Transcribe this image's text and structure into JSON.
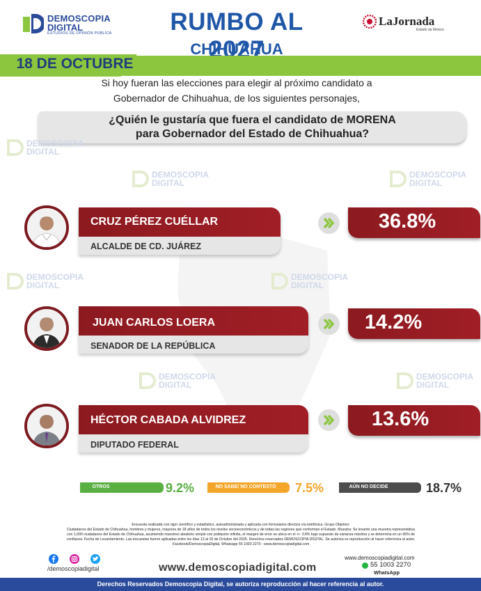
{
  "header": {
    "logo_line1": "DEMOSCOPIA",
    "logo_line2": "DIGITAL",
    "logo_tagline": "ESTUDIOS DE OPINIÓN PÚBLICA",
    "title": "RUMBO AL 2027",
    "subtitle": "CHIHUAHUA",
    "partner_name": "LaJornada",
    "partner_sub": "Estado de México",
    "date": "18 DE OCTUBRE"
  },
  "intro": {
    "line1": "Si hoy fueran las elecciones para elegir al próximo candidato a",
    "line2": "Gobernador de Chihuahua, de los siguientes personajes,"
  },
  "question": {
    "line1": "¿Quién le gustaría que fuera el candidato de MORENA",
    "line2": "para Gobernador del Estado de Chihuahua?"
  },
  "watermark": {
    "line1": "DEMOSCOPIA",
    "line2": "DIGITAL",
    "line3": "ESTUDIOS DE OPINIÓN PÚBLICA"
  },
  "candidates": [
    {
      "name": "CRUZ PÉREZ CUÉLLAR",
      "role": "ALCALDE DE CD. JUÁREZ",
      "percent": "36.8%"
    },
    {
      "name": "JUAN CARLOS LOERA",
      "role": "SENADOR DE LA REPÚBLICA",
      "percent": "14.2%"
    },
    {
      "name": "HÉCTOR CABADA ALVIDREZ",
      "role": "DIPUTADO FEDERAL",
      "percent": "13.6%"
    }
  ],
  "others": [
    {
      "label": "OTROS",
      "value": "9.2%",
      "color": "#5aaf43"
    },
    {
      "label": "NO SABE/ NO CONTESTÓ",
      "value": "7.5%",
      "color": "#f4a62a"
    },
    {
      "label": "AÚN NO DECIDE",
      "value": "18.7%",
      "color": "#4d4d4d"
    }
  ],
  "methodology": {
    "line1": "Encuesta realizada con rigor científico y estadístico, autoadministrada y aplicada con formularios directos vía telefónica. Grupo Objetivo:",
    "line2": "Ciudadanos del Estado de Chihuahua, hombres y mujeres, mayores de 18 años de todos los niveles socioeconómicos y de todas las regiones que conforman el Estado. Muestra: Se levantó una muestra representativa",
    "line3": "con 1,000 ciudadanos del Estado de Chihuahua, asumiendo muestreo aleatorio simple con población infinita, el margen de error se ubica en el +/- 3.8% bajo supuesto de varianza máxima y se determina en un 95% de",
    "line4": "confianza. Fecha de Levantamiento. Las encuestas fueron aplicadas entre los días 13 al 16 de Octubre del 2025. Derechos reservados DEMOSCOPIA DIGITAL. Se autoriza su reproducción al hacer referencia al autor,",
    "line5": "Facebook/DemoscopiaDigital, Whatsapp 55 1003 2270 - www.demoscopiadigital.com"
  },
  "contact": {
    "handle": "/demoscopiadigital",
    "website": "www.demoscopiadigital.com",
    "website_small": "www.demoscopiadigital.com",
    "phone": "55 1003 2270",
    "whatsapp_label": "WhatsApp"
  },
  "footer": {
    "text": "Derechos Reservados Demoscopia Digital, se autoriza reproducción al hacer referencia al autor."
  },
  "colors": {
    "brand_blue": "#1f57a8",
    "accent_green": "#8cc63f",
    "candidate_red": "#8b1a1f"
  }
}
